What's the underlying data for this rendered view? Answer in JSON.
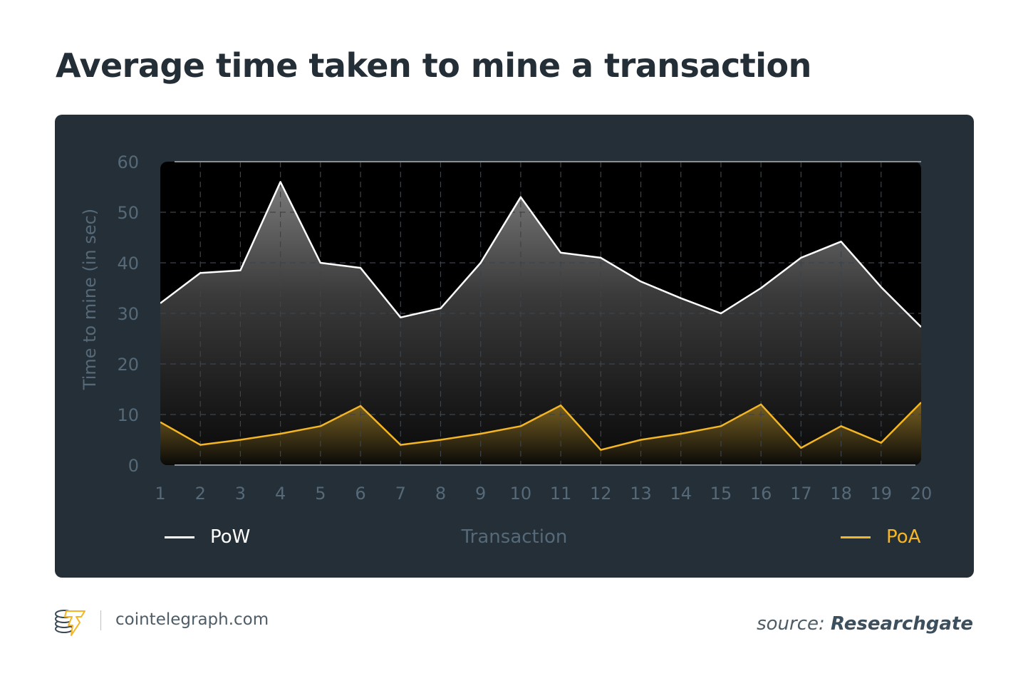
{
  "title": "Average time taken to mine a transaction",
  "footer": {
    "site": "cointelegraph.com",
    "source_prefix": "source:",
    "source_name": "Researchgate"
  },
  "legend": {
    "pow": "PoW",
    "poa": "PoA"
  },
  "colors": {
    "card_bg": "#252f37",
    "plot_bg": "#000000",
    "pow": "#ffffff",
    "poa": "#f5b625",
    "axis_text": "#566978",
    "title": "#232e36"
  },
  "chart_data": {
    "type": "area",
    "title": "Average time taken to mine a transaction",
    "xlabel": "Transaction",
    "ylabel": "Time to mine (in sec)",
    "categories": [
      1,
      2,
      3,
      4,
      5,
      6,
      7,
      8,
      9,
      10,
      11,
      12,
      13,
      14,
      15,
      16,
      17,
      18,
      19,
      20
    ],
    "yticks": [
      0,
      10,
      20,
      30,
      40,
      50,
      60
    ],
    "ylim": [
      0,
      60
    ],
    "grid": true,
    "legend_position": "bottom",
    "series": [
      {
        "name": "PoW",
        "color": "#ffffff",
        "values": [
          32,
          38,
          38.5,
          56,
          40,
          39,
          29.2,
          31,
          40,
          53,
          42,
          41,
          36.3,
          33,
          30,
          35,
          41,
          44.2,
          35.2,
          27.3
        ]
      },
      {
        "name": "PoA",
        "color": "#f5b625",
        "values": [
          8.5,
          4,
          5,
          6.2,
          7.7,
          11.7,
          4,
          5,
          6.2,
          7.7,
          11.8,
          3,
          5,
          6.2,
          7.7,
          12,
          3.4,
          7.7,
          4.4,
          12.4
        ]
      }
    ]
  }
}
